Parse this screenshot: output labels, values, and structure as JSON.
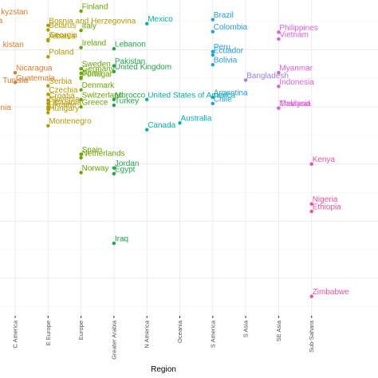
{
  "chart_data": {
    "type": "scatter",
    "xlabel": "Region",
    "ylabel": "",
    "categories": [
      "C America",
      "E Europe",
      "Europe",
      "Greater Arabia",
      "N America",
      "Oceania",
      "S America",
      "S Asia",
      "SE Asia",
      "Sub-Sahara"
    ],
    "ylim": [
      0,
      1
    ],
    "grid": true,
    "legend": "none",
    "colors": {
      "C America": "#e07b2a",
      "E Europe": "#b39a00",
      "Europe": "#6aa600",
      "Greater Arabia": "#1fa64a",
      "N America": "#00b39b",
      "Oceania": "#00b0c8",
      "S America": "#1f9ee0",
      "S Asia": "#9b7ee8",
      "SE Asia": "#e05cd6",
      "Sub-Sahara": "#f0509a"
    },
    "series": [
      {
        "region": "C America",
        "points": [
          [
            "Nicaragua",
            0.86
          ],
          [
            "Guatemala",
            0.843
          ]
        ]
      },
      {
        "region": "E Europe",
        "points": [
          [
            "Bosnia and Herzegovina",
            0.943
          ],
          [
            "Belarus",
            0.935
          ],
          [
            "Georgia",
            0.918
          ],
          [
            "Poland",
            0.888
          ],
          [
            "Serbia",
            0.837
          ],
          [
            "Czechia",
            0.822
          ],
          [
            "Slovenia",
            0.806
          ],
          [
            "Ukraine",
            0.796
          ],
          [
            "Montenegro",
            0.767
          ],
          [
            "Albania",
            0.916
          ],
          [
            "Lithuania",
            0.8
          ],
          [
            "Hungary",
            0.79
          ],
          [
            "Croatia",
            0.812
          ]
        ]
      },
      {
        "region": "Europe",
        "points": [
          [
            "Finland",
            0.968
          ],
          [
            "Italy",
            0.934
          ],
          [
            "Ireland",
            0.904
          ],
          [
            "Sweden",
            0.867
          ],
          [
            "Germany",
            0.859
          ],
          [
            "Portugal",
            0.85
          ],
          [
            "Spain",
            0.852
          ],
          [
            "Denmark",
            0.83
          ],
          [
            "Switzerland",
            0.813
          ],
          [
            "Greece",
            0.8
          ],
          [
            "Spain",
            0.717
          ],
          [
            "Netherlands",
            0.711
          ],
          [
            "Norway",
            0.685
          ]
        ]
      },
      {
        "region": "Greater Arabia",
        "points": [
          [
            "Lebanon",
            0.902
          ],
          [
            "Pakistan",
            0.872
          ],
          [
            "United Kingdom",
            0.862
          ],
          [
            "Morocco",
            0.813
          ],
          [
            "Turkey",
            0.803
          ],
          [
            "Jordan",
            0.693
          ],
          [
            "Egypt",
            0.683
          ],
          [
            "Iraq",
            0.561
          ]
        ]
      },
      {
        "region": "N America",
        "points": [
          [
            "Mexico",
            0.946
          ],
          [
            "United States of America",
            0.813
          ],
          [
            "Canada",
            0.76
          ]
        ]
      },
      {
        "region": "Oceania",
        "points": [
          [
            "Australia",
            0.772
          ]
        ]
      },
      {
        "region": "S America",
        "points": [
          [
            "Brazil",
            0.953
          ],
          [
            "Colombia",
            0.932
          ],
          [
            "Peru",
            0.897
          ],
          [
            "Ecuador",
            0.891
          ],
          [
            "Bolivia",
            0.874
          ],
          [
            "Argentina",
            0.817
          ],
          [
            "Chile",
            0.806
          ]
        ]
      },
      {
        "region": "S Asia",
        "points": [
          [
            "Bangladesh",
            0.847
          ]
        ]
      },
      {
        "region": "SE Asia",
        "points": [
          [
            "Philippines",
            0.931
          ],
          [
            "Vietnam",
            0.919
          ],
          [
            "Myanmar",
            0.86
          ],
          [
            "Indonesia",
            0.836
          ],
          [
            "Malaysia",
            0.798
          ],
          [
            "Thailand",
            0.798
          ]
        ]
      },
      {
        "region": "Sub-Sahara",
        "points": [
          [
            "Kenya",
            0.7
          ],
          [
            "Nigeria",
            0.63
          ],
          [
            "Ethiopia",
            0.617
          ],
          [
            "Zimbabwe",
            0.468
          ]
        ]
      }
    ],
    "partial_labels": [
      {
        "text": "kyzstan",
        "region": "C America"
      },
      {
        "text": "a",
        "region": "C America"
      },
      {
        "text": "kistan",
        "region": "C America"
      },
      {
        "text": "Tunisia",
        "region": "C America"
      },
      {
        "text": "nia",
        "region": "C America"
      }
    ]
  }
}
